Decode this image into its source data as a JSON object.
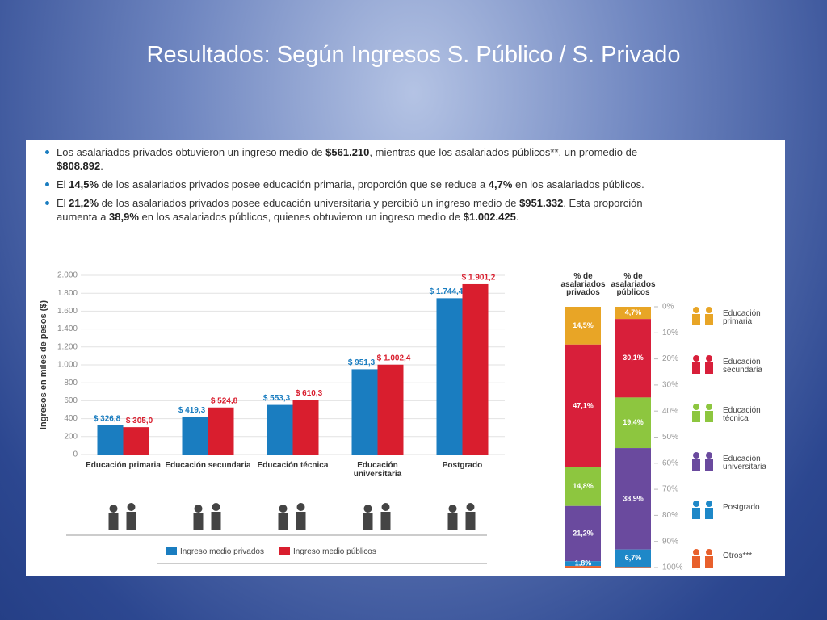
{
  "title": "Resultados: Según Ingresos S. Público / S. Privado",
  "bullets": [
    [
      "Los asalariados privados obtuvieron un ingreso medio de ",
      "$561.210",
      ", mientras que los asalariados públicos**, un promedio de ",
      "$808.892",
      "."
    ],
    [
      "El ",
      "14,5%",
      " de los asalariados privados posee educación primaria, proporción que se reduce a ",
      "4,7%",
      " en los asalariados públicos."
    ],
    [
      "El ",
      "21,2%",
      " de los asalariados privados posee educación universitaria y percibió un ingreso medio de ",
      "$951.332",
      ". Esta proporción aumenta a ",
      "38,9%",
      " en los asalariados públicos, quienes obtuvieron un ingreso medio de ",
      "$1.002.425",
      "."
    ]
  ],
  "chart_data": [
    {
      "type": "bar",
      "ylabel": "Ingresos en miles de pesos ($)",
      "categories": [
        "Educación primaria",
        "Educación secundaria",
        "Educación técnica",
        "Educación universitaria",
        "Postgrado"
      ],
      "series": [
        {
          "name": "Ingreso medio privados",
          "color": "#1a7dc0",
          "values": [
            326.8,
            419.3,
            553.3,
            951.3,
            1744.4
          ],
          "value_labels": [
            "$ 326,8",
            "$ 419,3",
            "$ 553,3",
            "$ 951,3",
            "$ 1.744,4"
          ]
        },
        {
          "name": "Ingreso medio públicos",
          "color": "#d91e2e",
          "values": [
            305.0,
            524.8,
            610.3,
            1002.4,
            1901.2
          ],
          "value_labels": [
            "$ 305,0",
            "$ 524,8",
            "$ 610,3",
            "$ 1.002,4",
            "$ 1.901,2"
          ]
        }
      ],
      "ylim": [
        0,
        2000
      ],
      "yticks": [
        0,
        200,
        400,
        600,
        800,
        {
          "value": 1000,
          "label": "1.000"
        },
        {
          "value": 1200,
          "label": "1.200"
        },
        {
          "value": 1400,
          "label": "1.400"
        },
        {
          "value": 1600,
          "label": "1.600"
        },
        {
          "value": 1800,
          "label": "1.800"
        },
        {
          "value": 2000,
          "label": "2.000"
        }
      ],
      "grid": true
    },
    {
      "type": "stacked_bar",
      "categories": [
        "% de asalariados privados",
        "% de asalariados públicos"
      ],
      "series": [
        {
          "name": "Educación primaria",
          "color": "#e8a526",
          "values": [
            14.5,
            4.7
          ],
          "value_labels": [
            "14,5%",
            "4,7%"
          ]
        },
        {
          "name": "Educación secundaria",
          "color": "#d81f3a",
          "values": [
            47.1,
            30.1
          ],
          "value_labels": [
            "47,1%",
            "30,1%"
          ]
        },
        {
          "name": "Educación técnica",
          "color": "#8dc63f",
          "values": [
            14.8,
            19.4
          ],
          "value_labels": [
            "14,8%",
            "19,4%"
          ]
        },
        {
          "name": "Educación universitaria",
          "color": "#6a4a9e",
          "values": [
            21.2,
            38.9
          ],
          "value_labels": [
            "21,2%",
            "38,9%"
          ]
        },
        {
          "name": "Postgrado",
          "color": "#1e88c8",
          "values": [
            1.8,
            6.7
          ],
          "value_labels": [
            "1,8%",
            "6,7%"
          ]
        },
        {
          "name": "Otros***",
          "color": "#e8602c",
          "values": [
            0.6,
            0.2
          ],
          "value_labels": [
            null,
            null
          ]
        }
      ],
      "ylim": [
        100,
        0
      ],
      "yticks": [
        {
          "value": 0,
          "label": "0%"
        },
        {
          "value": 10,
          "label": "10%"
        },
        {
          "value": 20,
          "label": "20%"
        },
        {
          "value": 30,
          "label": "30%"
        },
        {
          "value": 40,
          "label": "40%"
        },
        {
          "value": 50,
          "label": "50%"
        },
        {
          "value": 60,
          "label": "60%"
        },
        {
          "value": 70,
          "label": "70%"
        },
        {
          "value": 80,
          "label": "80%"
        },
        {
          "value": 90,
          "label": "90%"
        },
        {
          "value": 100,
          "label": "100%"
        }
      ]
    }
  ]
}
